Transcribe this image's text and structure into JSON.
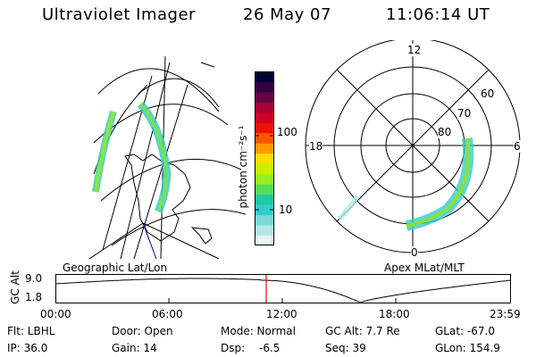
{
  "header": {
    "instrument": "Ultraviolet Imager",
    "date": "26 May 07",
    "time": "11:06:14 UT"
  },
  "colorbar": {
    "label": "photon cm⁻²s⁻¹",
    "tick_100": "100",
    "tick_10": "10",
    "colors": [
      "#e8f4f4",
      "#b4e8e8",
      "#7dd8d8",
      "#33cccc",
      "#22c8a0",
      "#55dd55",
      "#99ee22",
      "#ccee00",
      "#ffdd00",
      "#ff9900",
      "#ff5500",
      "#ee1100",
      "#cc0022",
      "#aa0033",
      "#660044",
      "#330044",
      "#000033"
    ]
  },
  "left_map": {
    "caption": "Geographic Lat/Lon"
  },
  "right_map": {
    "caption": "Apex MLat/MLT",
    "mlt_12": "12",
    "mlt_18": "18",
    "mlt_6": "6",
    "mlt_0": "0",
    "lat_60": "60",
    "lat_70": "70",
    "lat_80": "80"
  },
  "orbit_plot": {
    "ylabel": "GC Alt",
    "ytick_top": "9.0",
    "ytick_bottom": "1.8",
    "xticks": [
      "00:00",
      "06:00",
      "12:00",
      "18:00",
      "23:59"
    ],
    "current_time_marker": "11:06"
  },
  "footer": {
    "filter": "Flt: LBHL",
    "door": "Door: Open",
    "mode": "Mode: Normal",
    "gc_alt": "GC Alt: 7.7 Re",
    "glat": "GLat: -67.0",
    "ip": "IP: 36.0",
    "gain": "Gain: 14",
    "dsp_label": "Dsp:",
    "dsp_value": "-6.5",
    "seq": "Seq: 39",
    "glon": "GLon: 154.9"
  }
}
